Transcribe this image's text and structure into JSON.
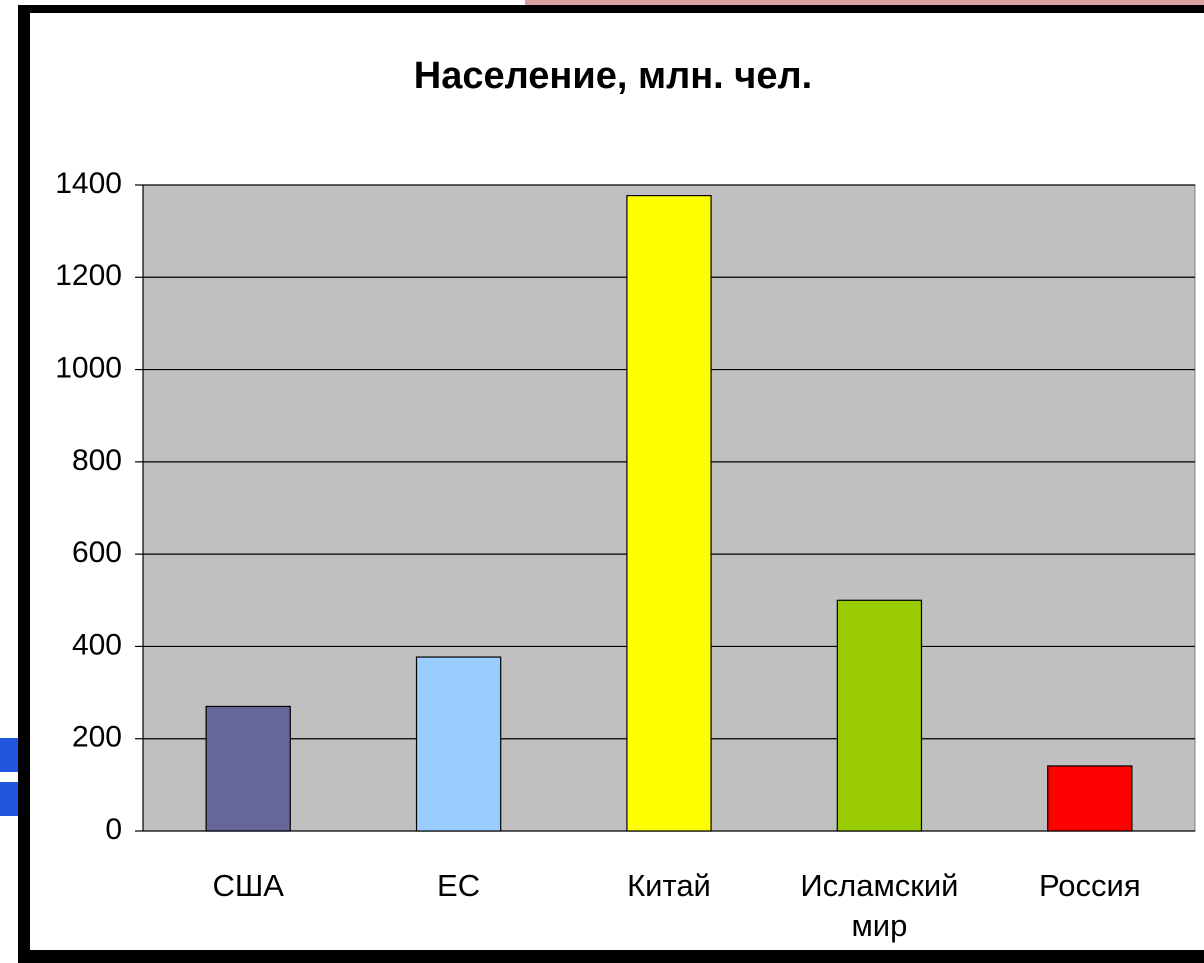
{
  "chart_data": {
    "type": "bar",
    "title": "Население, млн. чел.",
    "categories": [
      "США",
      "ЕС",
      "Китай",
      "Исламский мир",
      "Россия"
    ],
    "values": [
      270,
      377,
      1377,
      500,
      141
    ],
    "colors": [
      "#666699",
      "#99ccff",
      "#ffff00",
      "#99cc00",
      "#ff0000"
    ],
    "ylim": [
      0,
      1400
    ],
    "yticks": [
      0,
      200,
      400,
      600,
      800,
      1000,
      1200,
      1400
    ],
    "grid": true
  }
}
